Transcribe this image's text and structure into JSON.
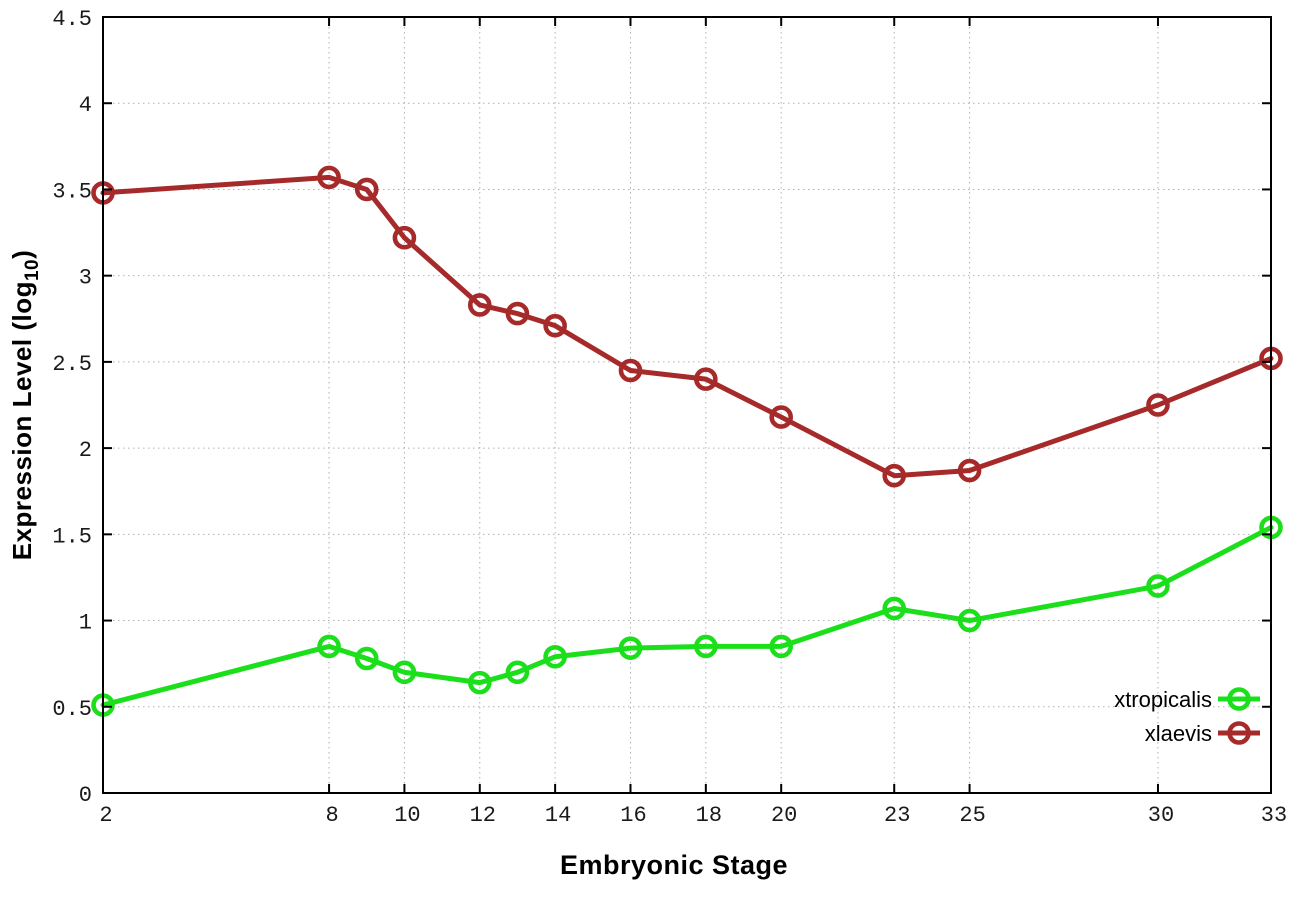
{
  "chart_data": {
    "type": "line",
    "title": "",
    "xlabel": "Embryonic Stage",
    "ylabel": "Expression Level (log10)",
    "ylabel_parts": {
      "main": "Expression Level (log",
      "sub": "10",
      "close": ")"
    },
    "x": [
      2,
      8,
      9,
      10,
      12,
      13,
      14,
      16,
      18,
      20,
      23,
      25,
      30,
      33
    ],
    "series": [
      {
        "name": "xtropicalis",
        "color": "#1bdf1b",
        "values": [
          0.51,
          0.85,
          0.78,
          0.7,
          0.64,
          0.7,
          0.79,
          0.84,
          0.85,
          0.85,
          1.07,
          1.0,
          1.2,
          1.54
        ]
      },
      {
        "name": "xlaevis",
        "color": "#a62a2a",
        "values": [
          3.48,
          3.57,
          3.5,
          3.22,
          2.83,
          2.78,
          2.71,
          2.45,
          2.4,
          2.18,
          1.84,
          1.87,
          2.25,
          2.52
        ]
      }
    ],
    "xticks": {
      "values": [
        2,
        8,
        10,
        12,
        14,
        16,
        18,
        20,
        23,
        25,
        30,
        33
      ],
      "labels": [
        "2",
        "8",
        "10",
        "12",
        "14",
        "16",
        "18",
        "20",
        "23",
        "25",
        "30",
        "33"
      ]
    },
    "yticks": {
      "values": [
        0,
        0.5,
        1,
        1.5,
        2,
        2.5,
        3,
        3.5,
        4,
        4.5
      ],
      "labels": [
        "0",
        "0.5",
        "1",
        "1.5",
        "2",
        "2.5",
        "3",
        "3.5",
        "4",
        "4.5"
      ]
    },
    "xlim": [
      2,
      33
    ],
    "ylim": [
      0,
      4.5
    ],
    "grid": true,
    "legend_position": "bottom-right-inside",
    "legend": [
      "xtropicalis",
      "xlaevis"
    ],
    "colors": {
      "background": "#ffffff",
      "axis": "#000000",
      "grid": "#b0b0b0",
      "tick_text": "#1a1a1a"
    }
  }
}
